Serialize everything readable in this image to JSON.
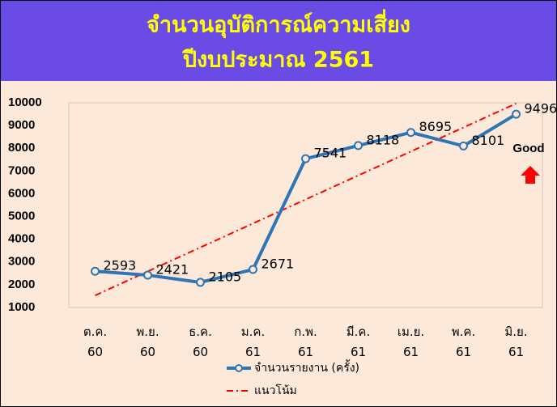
{
  "chart_data": {
    "type": "line",
    "title": [
      "จำนวนอุบัติการณ์ความเสี่ยง",
      "ปีงบประมาณ 2561"
    ],
    "categories": [
      "ต.ค. 60",
      "พ.ย. 60",
      "ธ.ค. 60",
      "ม.ค. 61",
      "ก.พ. 61",
      "มี.ค. 61",
      "เม.ย. 61",
      "พ.ค. 61",
      "มิ.ย. 61"
    ],
    "series": [
      {
        "name": "จำนวนรายงาน (ครั้ง)",
        "color": "#2e75b6",
        "values": [
          2593,
          2421,
          2105,
          2671,
          7541,
          8118,
          8695,
          8101,
          9496
        ],
        "markers": true,
        "data_labels": true
      },
      {
        "name": "แนวโน้ม",
        "color": "#ff0000",
        "values": [
          1530,
          2585,
          3640,
          4694,
          5749,
          6804,
          7858,
          8913,
          9968
        ],
        "dash": "dash-dot"
      }
    ],
    "ylim": [
      1000,
      10000
    ],
    "yticks": [
      1000,
      2000,
      3000,
      4000,
      5000,
      6000,
      7000,
      8000,
      9000,
      10000
    ],
    "grid": false,
    "legend": "bottom",
    "annotations": [
      "Good"
    ]
  }
}
